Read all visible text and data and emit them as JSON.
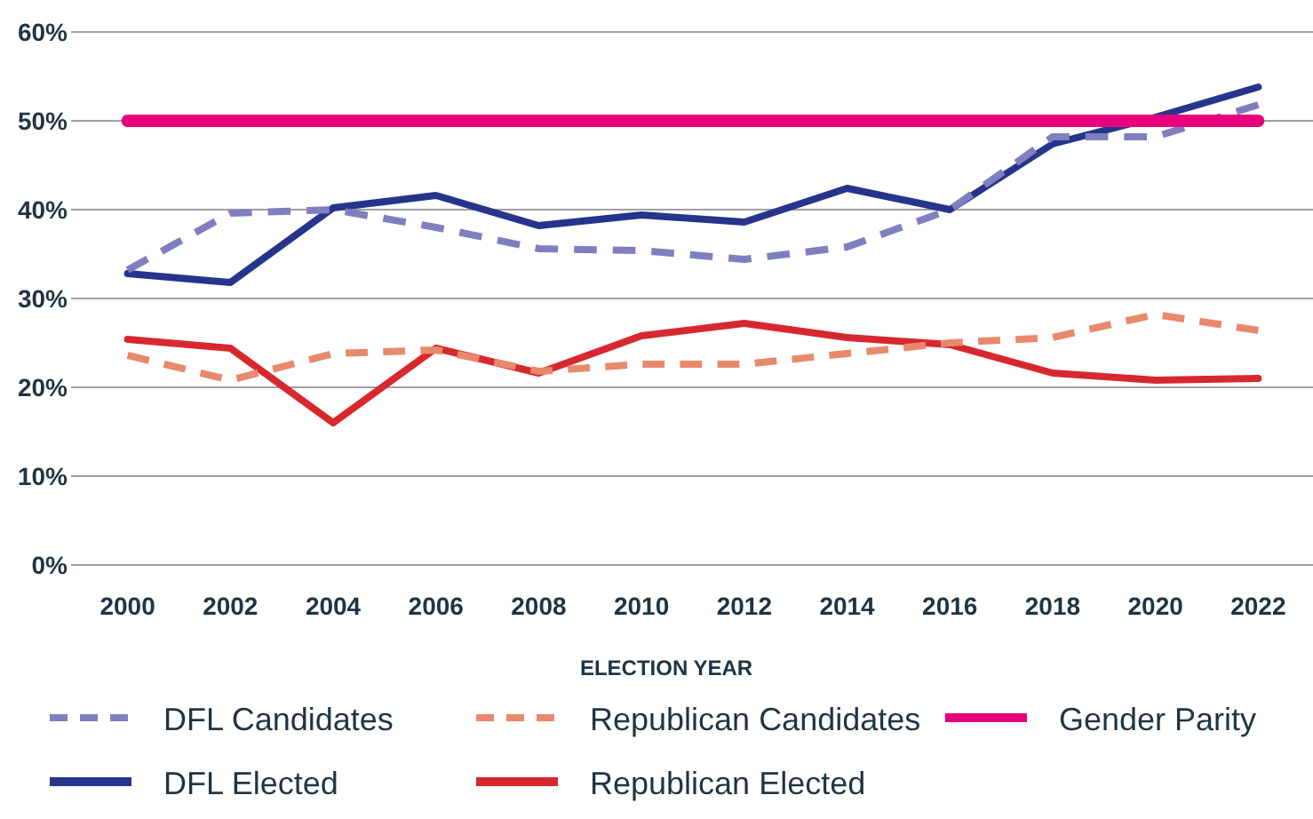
{
  "chart_data": {
    "type": "line",
    "xlabel": "ELECTION YEAR",
    "categories": [
      "2000",
      "2002",
      "2004",
      "2006",
      "2008",
      "2010",
      "2012",
      "2014",
      "2016",
      "2018",
      "2020",
      "2022"
    ],
    "ylim": [
      0,
      60
    ],
    "yticks": [
      {
        "value": 0,
        "label": "0%"
      },
      {
        "value": 10,
        "label": "10%"
      },
      {
        "value": 20,
        "label": "20%"
      },
      {
        "value": 30,
        "label": "30%"
      },
      {
        "value": 40,
        "label": "40%"
      },
      {
        "value": 50,
        "label": "50%"
      },
      {
        "value": 60,
        "label": "60%"
      }
    ],
    "grid": "y",
    "legend": "bottom",
    "marker": "none",
    "series": [
      {
        "name": "DFL Candidates",
        "color": "#7f7fbf",
        "line_style": "dashed",
        "values": [
          33.2,
          39.6,
          40,
          38,
          35.6,
          35.4,
          34.4,
          35.8,
          40,
          48.2,
          48.2,
          51.8
        ]
      },
      {
        "name": "Republican Candidates",
        "color": "#e8896c",
        "line_style": "dashed",
        "values": [
          23.6,
          20.8,
          23.8,
          24.2,
          21.8,
          22.6,
          22.6,
          23.8,
          25,
          25.6,
          28.2,
          26.4
        ]
      },
      {
        "name": "Gender Parity",
        "color": "#e6007e",
        "line_style": "solid",
        "values": [
          50,
          50,
          50,
          50,
          50,
          50,
          50,
          50,
          50,
          50,
          50,
          50
        ]
      },
      {
        "name": "DFL Elected",
        "color": "#27348b",
        "line_style": "solid",
        "values": [
          32.8,
          31.8,
          40.2,
          41.6,
          38.2,
          39.4,
          38.6,
          42.4,
          40,
          47.4,
          50.4,
          53.8
        ]
      },
      {
        "name": "Republican Elected",
        "color": "#d7282f",
        "line_style": "solid",
        "values": [
          25.4,
          24.4,
          16,
          24.4,
          21.6,
          25.8,
          27.2,
          25.6,
          24.8,
          21.6,
          20.8,
          21
        ]
      }
    ]
  }
}
